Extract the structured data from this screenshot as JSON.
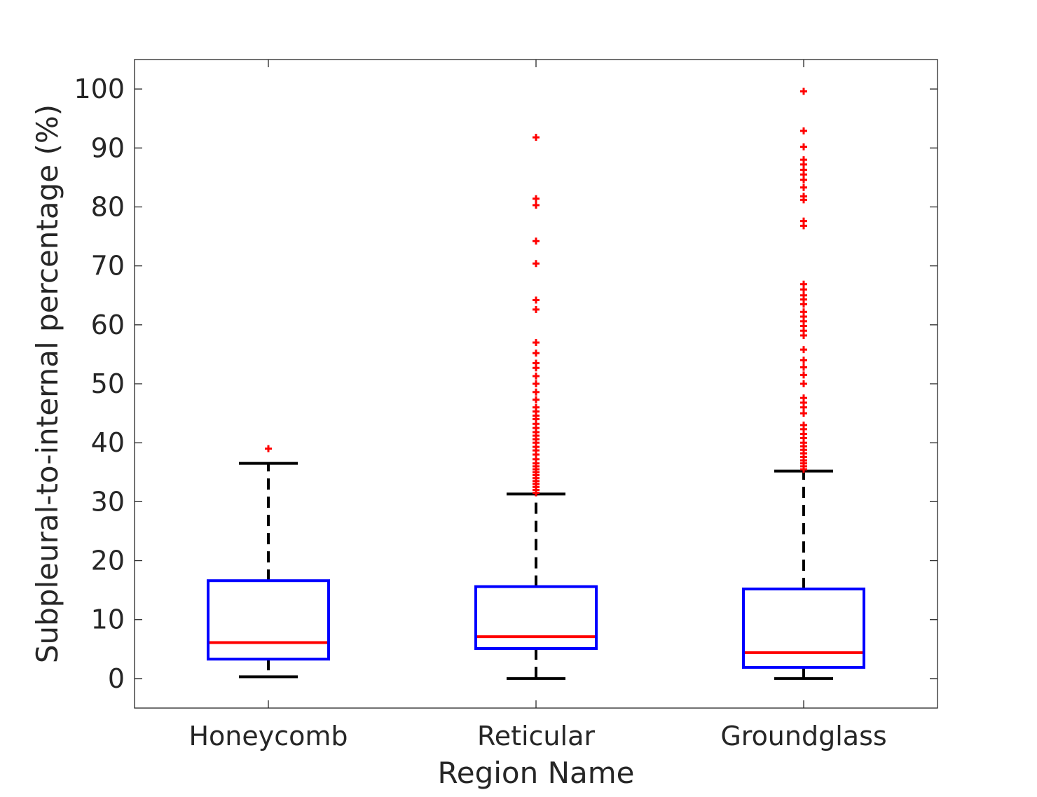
{
  "chart_data": {
    "type": "boxplot",
    "xlabel": "Region Name",
    "ylabel": "Subpleural-to-internal percentage (%)",
    "ylim": [
      -5,
      105
    ],
    "yticks": [
      0,
      10,
      20,
      30,
      40,
      50,
      60,
      70,
      80,
      90,
      100
    ],
    "categories": [
      "Honeycomb",
      "Reticular",
      "Groundglass"
    ],
    "colors": {
      "box": "#0000ff",
      "median": "#ff0000",
      "whisker": "#000000",
      "outlier": "#ff0000",
      "axis": "#262626"
    },
    "boxes": [
      {
        "category": "Honeycomb",
        "whisker_low": 0.3,
        "q1": 3.3,
        "median": 6.1,
        "q3": 16.6,
        "whisker_high": 36.5,
        "outliers": [
          39.0
        ]
      },
      {
        "category": "Reticular",
        "whisker_low": 0.0,
        "q1": 5.1,
        "median": 7.1,
        "q3": 15.6,
        "whisker_high": 31.3,
        "outliers": [
          31.5,
          32.0,
          32.5,
          33.0,
          33.5,
          34.0,
          34.5,
          35.0,
          35.5,
          36.0,
          36.5,
          37.2,
          38.0,
          38.7,
          39.3,
          40.0,
          40.6,
          41.2,
          41.8,
          42.5,
          43.2,
          44.0,
          44.6,
          45.3,
          46.0,
          47.3,
          48.6,
          50.0,
          51.3,
          52.7,
          53.5,
          55.2,
          57.0,
          62.6,
          64.2,
          70.4,
          74.2,
          80.3,
          81.4,
          91.8
        ]
      },
      {
        "category": "Groundglass",
        "whisker_low": 0.0,
        "q1": 1.9,
        "median": 4.4,
        "q3": 15.2,
        "whisker_high": 35.2,
        "outliers": [
          35.5,
          36.0,
          36.5,
          37.0,
          37.6,
          38.2,
          38.8,
          39.4,
          40.0,
          40.8,
          41.5,
          42.3,
          43.0,
          45.0,
          46.0,
          46.8,
          47.6,
          50.0,
          51.5,
          52.8,
          54.0,
          55.8,
          58.2,
          59.0,
          59.8,
          60.6,
          61.4,
          62.2,
          63.5,
          64.3,
          65.0,
          66.0,
          66.9,
          76.8,
          77.6,
          81.2,
          81.8,
          83.3,
          84.6,
          85.5,
          86.3,
          87.2,
          88.0,
          90.2,
          92.9,
          99.6
        ]
      }
    ]
  }
}
